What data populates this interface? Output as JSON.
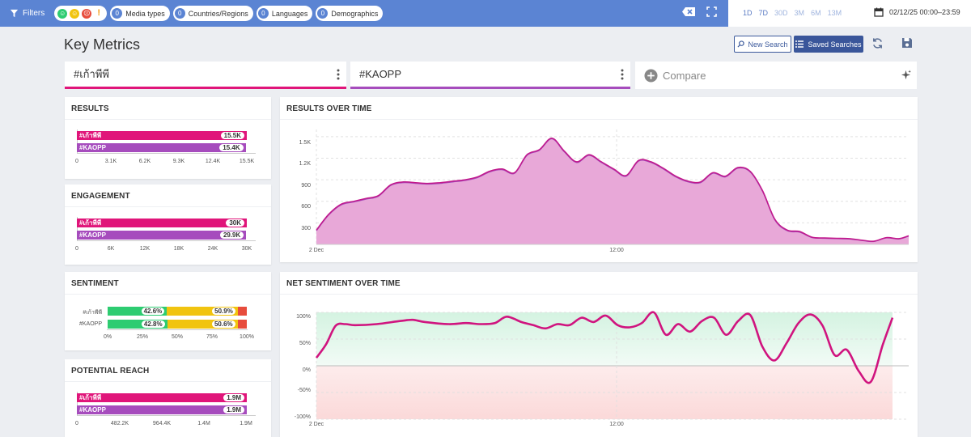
{
  "topbar": {
    "filters_label": "Filters",
    "filter_pills": [
      {
        "count": "0",
        "label": "Media types"
      },
      {
        "count": "0",
        "label": "Countries/Regions"
      },
      {
        "count": "0",
        "label": "Languages"
      },
      {
        "count": "0",
        "label": "Demographics"
      }
    ],
    "sentiment_icons": [
      "positive-face-icon",
      "neutral-face-icon",
      "negative-face-icon",
      "exclamation-icon"
    ],
    "time_ranges": [
      "1D",
      "7D",
      "30D",
      "3M",
      "6M",
      "13M"
    ],
    "date_range": "02/12/25 00:00–23:59"
  },
  "header": {
    "title": "Key Metrics",
    "new_search_label": "New Search",
    "saved_searches_label": "Saved Searches"
  },
  "queries": {
    "q1": "#เก้าพีพี",
    "q2": "#KAOPP",
    "compare_label": "Compare"
  },
  "colors": {
    "q1": "#e0157a",
    "q2": "#a64cbd",
    "accent": "#5b84d3",
    "positive": "#2ecc71",
    "neutral": "#f1c40f",
    "negative": "#e74c3c"
  },
  "cards": {
    "results": {
      "title": "RESULTS",
      "series": [
        {
          "label": "#เก้าพีพี",
          "value_label": "15.5K",
          "value": 15500
        },
        {
          "label": "#KAOPP",
          "value_label": "15.4K",
          "value": 15400
        }
      ],
      "axis_max": 15500,
      "ticks": [
        "0",
        "3.1K",
        "6.2K",
        "9.3K",
        "12.4K",
        "15.5K"
      ]
    },
    "engagement": {
      "title": "ENGAGEMENT",
      "series": [
        {
          "label": "#เก้าพีพี",
          "value_label": "30K",
          "value": 30000
        },
        {
          "label": "#KAOPP",
          "value_label": "29.9K",
          "value": 29900
        }
      ],
      "axis_max": 30000,
      "ticks": [
        "0",
        "6K",
        "12K",
        "18K",
        "24K",
        "30K"
      ]
    },
    "sentiment": {
      "title": "SENTIMENT",
      "rows": [
        {
          "label": "#เก้าพีพี",
          "positive": 42.6,
          "positive_label": "42.6%",
          "neutral": 50.9,
          "neutral_label": "50.9%",
          "negative": 6.5
        },
        {
          "label": "#KAOPP",
          "positive": 42.8,
          "positive_label": "42.8%",
          "neutral": 50.6,
          "neutral_label": "50.6%",
          "negative": 6.6
        }
      ],
      "ticks": [
        "0%",
        "25%",
        "50%",
        "75%",
        "100%"
      ]
    },
    "reach": {
      "title": "POTENTIAL REACH",
      "series": [
        {
          "label": "#เก้าพีพี",
          "value_label": "1.9M",
          "value": 1900000
        },
        {
          "label": "#KAOPP",
          "value_label": "1.9M",
          "value": 1900000
        }
      ],
      "axis_max": 1900000,
      "ticks": [
        "0",
        "482.2K",
        "964.4K",
        "1.4M",
        "1.9M"
      ]
    }
  },
  "chart_data": [
    {
      "type": "area",
      "title": "RESULTS OVER TIME",
      "y_ticks": [
        "300",
        "600",
        "900",
        "1.2K",
        "1.5K"
      ],
      "ylim": [
        0,
        1600
      ],
      "x_ticks": [
        "2 Dec",
        "12:00"
      ],
      "x_range": [
        0,
        23.9
      ],
      "series": [
        {
          "name": "#เก้าพีพี",
          "x": [
            0,
            0.5,
            1,
            1.5,
            2,
            2.5,
            3,
            3.5,
            4,
            4.5,
            5,
            5.5,
            6,
            6.5,
            7,
            7.5,
            8,
            8.5,
            9,
            9.5,
            10,
            10.5,
            11,
            11.5,
            12,
            12.5,
            13,
            13.5,
            14,
            14.5,
            15,
            15.5,
            16,
            16.5,
            17,
            17.5,
            18,
            18.5,
            19,
            19.5,
            20,
            20.5,
            21,
            21.5,
            22,
            22.5,
            23,
            23.5,
            23.9
          ],
          "y": [
            200,
            420,
            560,
            600,
            640,
            680,
            830,
            870,
            860,
            850,
            860,
            880,
            900,
            940,
            1020,
            1050,
            1000,
            1250,
            1320,
            1480,
            1300,
            1150,
            1250,
            1150,
            1050,
            960,
            1170,
            1150,
            1060,
            950,
            880,
            870,
            1000,
            950,
            1070,
            1020,
            750,
            350,
            200,
            180,
            100,
            90,
            85,
            80,
            60,
            45,
            95,
            80,
            120
          ]
        },
        {
          "name": "#KAOPP",
          "x": [
            0,
            0.5,
            1,
            1.5,
            2,
            2.5,
            3,
            3.5,
            4,
            4.5,
            5,
            5.5,
            6,
            6.5,
            7,
            7.5,
            8,
            8.5,
            9,
            9.5,
            10,
            10.5,
            11,
            11.5,
            12,
            12.5,
            13,
            13.5,
            14,
            14.5,
            15,
            15.5,
            16,
            16.5,
            17,
            17.5,
            18,
            18.5,
            19,
            19.5,
            20,
            20.5,
            21,
            21.5,
            22,
            22.5,
            23,
            23.5,
            23.9
          ],
          "y": [
            190,
            410,
            550,
            590,
            630,
            670,
            820,
            860,
            850,
            840,
            850,
            870,
            890,
            930,
            1010,
            1040,
            990,
            1240,
            1310,
            1470,
            1290,
            1140,
            1240,
            1140,
            1040,
            950,
            1160,
            1140,
            1050,
            940,
            870,
            860,
            990,
            940,
            1060,
            1010,
            740,
            340,
            190,
            170,
            95,
            85,
            80,
            75,
            55,
            40,
            90,
            75,
            115
          ]
        }
      ]
    },
    {
      "type": "line",
      "title": "NET SENTIMENT OVER TIME",
      "y_ticks": [
        "100%",
        "50%",
        "0%",
        "-50%",
        "-100%"
      ],
      "ylim": [
        -100,
        100
      ],
      "x_ticks": [
        "2 Dec",
        "12:00"
      ],
      "x_range": [
        0,
        23.9
      ],
      "series": [
        {
          "name": "#เก้าพีพี",
          "x": [
            0,
            0.4,
            0.8,
            1.2,
            1.6,
            2.5,
            3.5,
            4,
            4.5,
            5.5,
            6.2,
            6.8,
            7.4,
            7.9,
            8.5,
            9,
            9.5,
            10,
            10.5,
            11,
            11.5,
            12,
            12.5,
            13,
            13.5,
            14,
            14.5,
            15,
            15.5,
            16,
            16.5,
            17,
            17.5,
            18,
            18.5,
            19,
            19.5,
            20,
            20.5,
            21,
            21.5,
            22,
            22.5,
            23,
            23.5,
            23.9
          ],
          "y": [
            15,
            40,
            75,
            78,
            76,
            78,
            84,
            86,
            82,
            78,
            80,
            78,
            80,
            92,
            82,
            76,
            70,
            78,
            76,
            90,
            82,
            94,
            76,
            72,
            80,
            100,
            58,
            78,
            64,
            84,
            90,
            58,
            84,
            95,
            36,
            10,
            42,
            80,
            96,
            75,
            20,
            30,
            -10,
            -30,
            40,
            90
          ]
        }
      ]
    }
  ]
}
